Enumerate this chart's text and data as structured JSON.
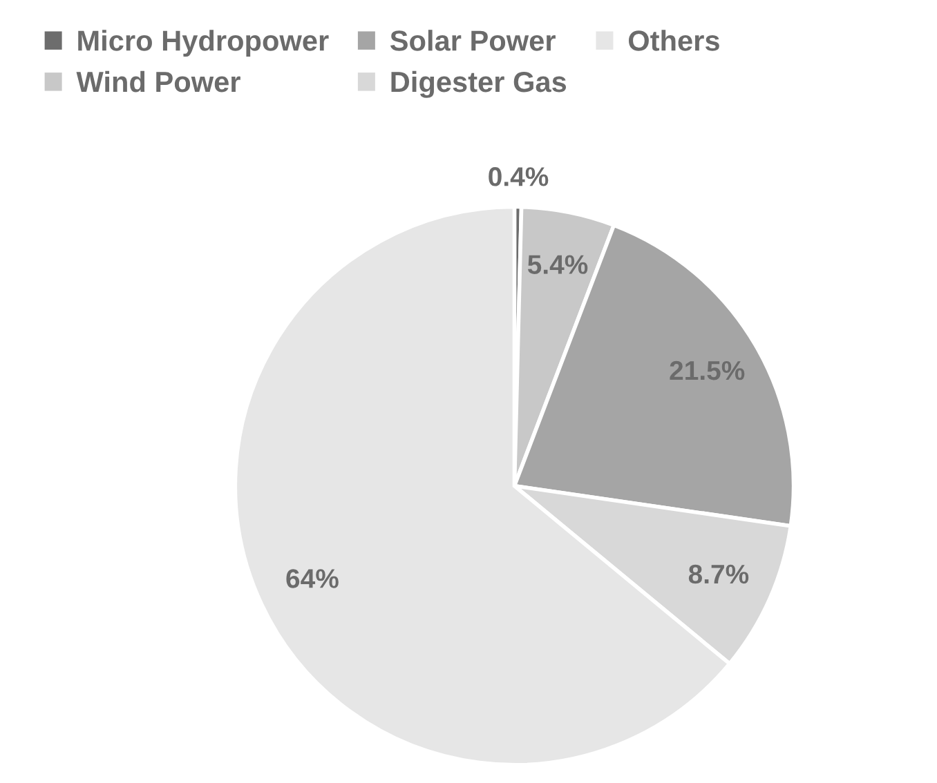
{
  "chart_data": {
    "type": "pie",
    "categories": [
      "Micro Hydropower",
      "Wind Power",
      "Solar Power",
      "Digester Gas",
      "Others"
    ],
    "values": [
      0.4,
      5.4,
      21.5,
      8.7,
      64
    ],
    "colors": [
      "#6d6d6d",
      "#c8c8c8",
      "#a5a5a5",
      "#d8d8d8",
      "#e6e6e6"
    ],
    "value_labels": [
      "0.4%",
      "5.4%",
      "21.5%",
      "8.7%",
      "64%"
    ],
    "legend": "top"
  }
}
